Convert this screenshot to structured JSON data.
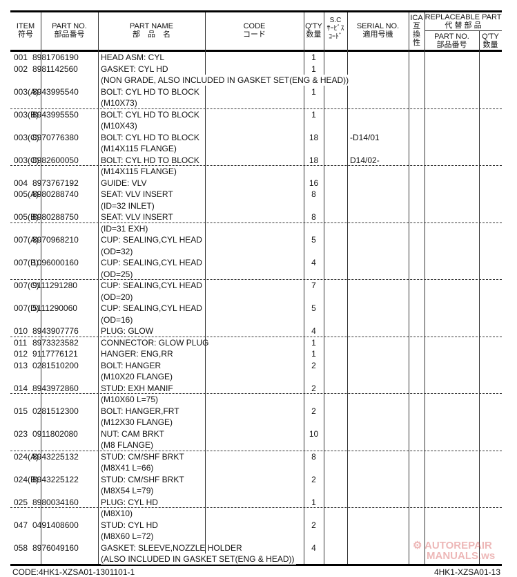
{
  "header": {
    "item": "ITEM",
    "item_jp": "符号",
    "part_no": "PART NO.",
    "part_no_jp": "部品番号",
    "part_name": "PART NAME",
    "part_name_jp": "部　品　名",
    "code": "CODE",
    "code_jp": "コード",
    "qty": "Q'TY",
    "qty_jp": "数量",
    "sc": "S.C",
    "sc_jp1": "ｻｰﾋﾞｽ",
    "sc_jp2": "ｺｰﾄﾞ",
    "serial": "SERIAL NO.",
    "serial_jp": "適用号機",
    "ica": "ICA",
    "ica_jp": [
      "互",
      "換",
      "性"
    ],
    "replaceable": "REPLACEABLE PART",
    "replaceable_jp": "代 替 部 品",
    "repl_part_no": "PART NO.",
    "repl_part_no_jp": "部品番号",
    "repl_qty": "Q'TY",
    "repl_qty_jp": "数量"
  },
  "rows": [
    {
      "item": "001",
      "part_no": "8981706190",
      "name": "HEAD ASM: CYL",
      "qty": "1"
    },
    {
      "item": "002",
      "part_no": "8981142560",
      "name": "GASKET: CYL HD",
      "qty": "1"
    },
    {
      "name": "(NON GRADE, ALSO INCLUDED IN GASKET SET(ENG & HEAD))",
      "long": true
    },
    {
      "item": "003(A)",
      "part_no": "8943995540",
      "name": "BOLT: CYL HD TO BLOCK",
      "qty": "1"
    },
    {
      "name": "(M10X73)"
    },
    {
      "item": "003(B)",
      "part_no": "8943995550",
      "name": "BOLT: CYL HD TO BLOCK",
      "qty": "1"
    },
    {
      "name": "(M10X43)"
    },
    {
      "item": "003(C)",
      "part_no": "8970776380",
      "name": "BOLT: CYL HD TO BLOCK",
      "qty": "18",
      "serial": "-D14/01"
    },
    {
      "name": "(M14X115 FLANGE)"
    },
    {
      "item": "003(C)",
      "part_no": "8982600050",
      "name": "BOLT: CYL HD TO BLOCK",
      "qty": "18",
      "serial": "D14/02-"
    },
    {
      "name": "(M14X115 FLANGE)"
    },
    {
      "item": "004",
      "part_no": "8973767192",
      "name": "GUIDE: VLV",
      "qty": "16"
    },
    {
      "item": "005(A)",
      "part_no": "8980288740",
      "name": "SEAT: VLV INSERT",
      "qty": "8"
    },
    {
      "name": "(ID=32 INLET)"
    },
    {
      "item": "005(B)",
      "part_no": "8980288750",
      "name": "SEAT: VLV INSERT",
      "qty": "8"
    },
    {
      "name": "(ID=31 EXH)"
    },
    {
      "item": "007(A)",
      "part_no": "8970968210",
      "name": "CUP: SEALING,CYL HEAD",
      "qty": "5"
    },
    {
      "name": "(OD=32)"
    },
    {
      "item": "007(B)",
      "part_no": "1096000160",
      "name": "CUP: SEALING,CYL HEAD",
      "qty": "4"
    },
    {
      "name": "(OD=25)"
    },
    {
      "item": "007(C)",
      "part_no": "9111291280",
      "name": "CUP: SEALING,CYL HEAD",
      "qty": "7"
    },
    {
      "name": "(OD=20)"
    },
    {
      "item": "007(D)",
      "part_no": "5111290060",
      "name": "CUP: SEALING,CYL HEAD",
      "qty": "5"
    },
    {
      "name": "(OD=16)"
    },
    {
      "item": "010",
      "part_no": "8943907776",
      "name": "PLUG: GLOW",
      "qty": "4"
    },
    {
      "item": "011",
      "part_no": "8973323582",
      "name": "CONNECTOR: GLOW PLUG",
      "qty": "1"
    },
    {
      "item": "012",
      "part_no": "9117776121",
      "name": "HANGER: ENG,RR",
      "qty": "1"
    },
    {
      "item": "013",
      "part_no": "0281510200",
      "name": "BOLT: HANGER",
      "qty": "2"
    },
    {
      "name": "(M10X20 FLANGE)"
    },
    {
      "item": "014",
      "part_no": "8943972860",
      "name": "STUD: EXH MANIF",
      "qty": "2"
    },
    {
      "name": "(M10X60 L=75)"
    },
    {
      "item": "015",
      "part_no": "0281512300",
      "name": "BOLT: HANGER,FRT",
      "qty": "2"
    },
    {
      "name": "(M12X30 FLANGE)"
    },
    {
      "item": "023",
      "part_no": "0911802080",
      "name": "NUT: CAM BRKT",
      "qty": "10"
    },
    {
      "name": "(M8 FLANGE)"
    },
    {
      "item": "024(A)",
      "part_no": "8943225132",
      "name": "STUD: CM/SHF BRKT",
      "qty": "8"
    },
    {
      "name": "(M8X41 L=66)"
    },
    {
      "item": "024(B)",
      "part_no": "8943225122",
      "name": "STUD: CM/SHF BRKT",
      "qty": "2"
    },
    {
      "name": "(M8X54 L=79)"
    },
    {
      "item": "025",
      "part_no": "8980034160",
      "name": "PLUG: CYL HD",
      "qty": "1"
    },
    {
      "name": "(M8X10)"
    },
    {
      "item": "047",
      "part_no": "0491408600",
      "name": "STUD: CYL HD",
      "qty": "2"
    },
    {
      "name": "(M8X60 L=72)"
    },
    {
      "item": "058",
      "part_no": "8976049160",
      "name": "GASKET: SLEEVE,NOZZLE HOLDER",
      "qty": "4"
    },
    {
      "name": "(ALSO INCLUDED IN GASKET SET(ENG & HEAD))",
      "long": true
    }
  ],
  "footer": {
    "code": "CODE:4HK1-XZSA01-1301101-1",
    "page": "4HK1-XZSA01-13"
  },
  "watermark": {
    "line1": "AUTOREPAIR",
    "line2": "MANUALS.ws",
    "color": "#c33"
  }
}
